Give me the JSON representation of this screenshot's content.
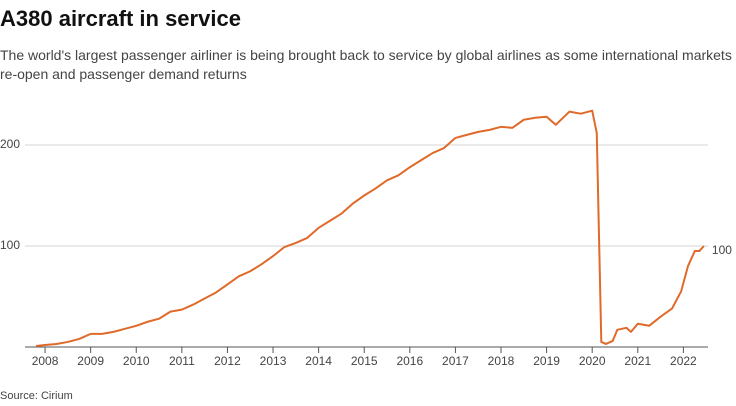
{
  "chart_data": {
    "type": "line",
    "title": "A380 aircraft in service",
    "subtitle": "The world's largest passenger airliner is being brought back to service by global airlines as some international markets re-open and passenger demand returns",
    "source": "Source: Cirium",
    "x": [
      2007.8,
      2008.0,
      2008.25,
      2008.5,
      2008.75,
      2009.0,
      2009.25,
      2009.5,
      2009.75,
      2010.0,
      2010.25,
      2010.5,
      2010.75,
      2011.0,
      2011.25,
      2011.5,
      2011.75,
      2012.0,
      2012.25,
      2012.5,
      2012.75,
      2013.0,
      2013.25,
      2013.5,
      2013.75,
      2014.0,
      2014.25,
      2014.5,
      2014.75,
      2015.0,
      2015.25,
      2015.5,
      2015.75,
      2016.0,
      2016.25,
      2016.5,
      2016.75,
      2017.0,
      2017.25,
      2017.5,
      2017.75,
      2018.0,
      2018.25,
      2018.5,
      2018.75,
      2019.0,
      2019.2,
      2019.5,
      2019.75,
      2020.0,
      2020.1,
      2020.2,
      2020.3,
      2020.45,
      2020.55,
      2020.75,
      2020.85,
      2021.0,
      2021.25,
      2021.5,
      2021.75,
      2021.95,
      2022.1,
      2022.25,
      2022.35,
      2022.45
    ],
    "series": [
      {
        "name": "A380 aircraft in service",
        "color": "#e06a2a",
        "values": [
          1,
          2,
          3,
          5,
          8,
          13,
          13,
          15,
          18,
          21,
          25,
          28,
          35,
          37,
          42,
          48,
          54,
          62,
          70,
          75,
          82,
          90,
          99,
          103,
          108,
          118,
          125,
          132,
          142,
          150,
          157,
          165,
          170,
          178,
          185,
          192,
          197,
          207,
          210,
          213,
          215,
          218,
          217,
          225,
          227,
          228,
          220,
          233,
          231,
          234,
          212,
          5,
          3,
          6,
          17,
          19,
          15,
          23,
          21,
          30,
          38,
          55,
          80,
          95,
          95,
          100
        ]
      }
    ],
    "xlim": [
      2007.56,
      2022.54
    ],
    "xticks": [
      2008,
      2009,
      2010,
      2011,
      2012,
      2013,
      2014,
      2015,
      2016,
      2017,
      2018,
      2019,
      2020,
      2021,
      2022
    ],
    "ylim": [
      0,
      240
    ],
    "yticks": [
      100,
      200
    ],
    "grid": true
  }
}
